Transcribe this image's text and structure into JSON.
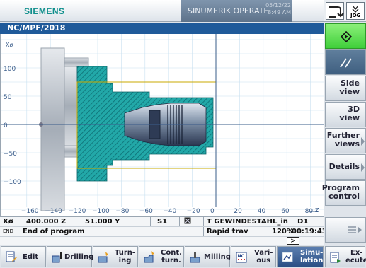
{
  "header": {
    "brand": "SIEMENS",
    "product": "SINUMERIK OPERATE",
    "date": "05/12/22",
    "time": "8:49 AM",
    "jog_label": "JOG",
    "icons": [
      "channel-switch-icon",
      "jog-mode-icon"
    ]
  },
  "path": "NC/MPF/2018",
  "canvas": {
    "x_axis_label": "Z",
    "y_axis_label": "Xø",
    "x_ticks": [
      "−160",
      "−140",
      "−120",
      "−100",
      "−80",
      "−60",
      "−40",
      "−20",
      "0",
      "20",
      "40",
      "60",
      "80"
    ],
    "y_ticks": [
      "100",
      "50",
      "0",
      "−50",
      "−100"
    ],
    "colors": {
      "grid": "#c8e0f0",
      "workpiece": "#22a8a8",
      "chuck": "#b8bec6",
      "axis": "#3a5c8a",
      "bound": "#c8a800"
    }
  },
  "status": {
    "x_axis": "Xø",
    "x_value": "400.000 Z",
    "z_value": "51.000 Y",
    "spindle": "S1",
    "tool": "T GEWINDESTAHL_in",
    "d_number": "D1",
    "program_state_prefix": "END",
    "program_state": "End of program",
    "feed_mode": "Rapid trav",
    "override": "120%",
    "elapsed": "00:19:43",
    "scroll_hint": ">"
  },
  "softkeys_bottom": [
    {
      "label": "Edit",
      "icon": "edit-icon"
    },
    {
      "label": "Drilling",
      "icon": "drilling-icon"
    },
    {
      "label": "Turn-\ning",
      "icon": "turning-icon"
    },
    {
      "label": "Cont.\nturn.",
      "icon": "contour-turning-icon"
    },
    {
      "label": "Milling",
      "icon": "milling-icon"
    },
    {
      "label": "Vari-\nous",
      "icon": "various-icon"
    },
    {
      "label": "Simu-\nlation",
      "icon": "simulation-icon"
    },
    {
      "label": "Ex-\necute",
      "icon": "execute-icon"
    }
  ],
  "softkeys_right": [
    {
      "label": "",
      "icon": "start-icon"
    },
    {
      "label": "",
      "icon": "parallel-lines-icon"
    },
    {
      "label": "Side\nview"
    },
    {
      "label": "3D\nview"
    },
    {
      "label": "Further\nviews"
    },
    {
      "label": "Details"
    },
    {
      "label": "Program\ncontrol"
    },
    {
      "label": "",
      "icon": "menu-list-icon"
    }
  ]
}
